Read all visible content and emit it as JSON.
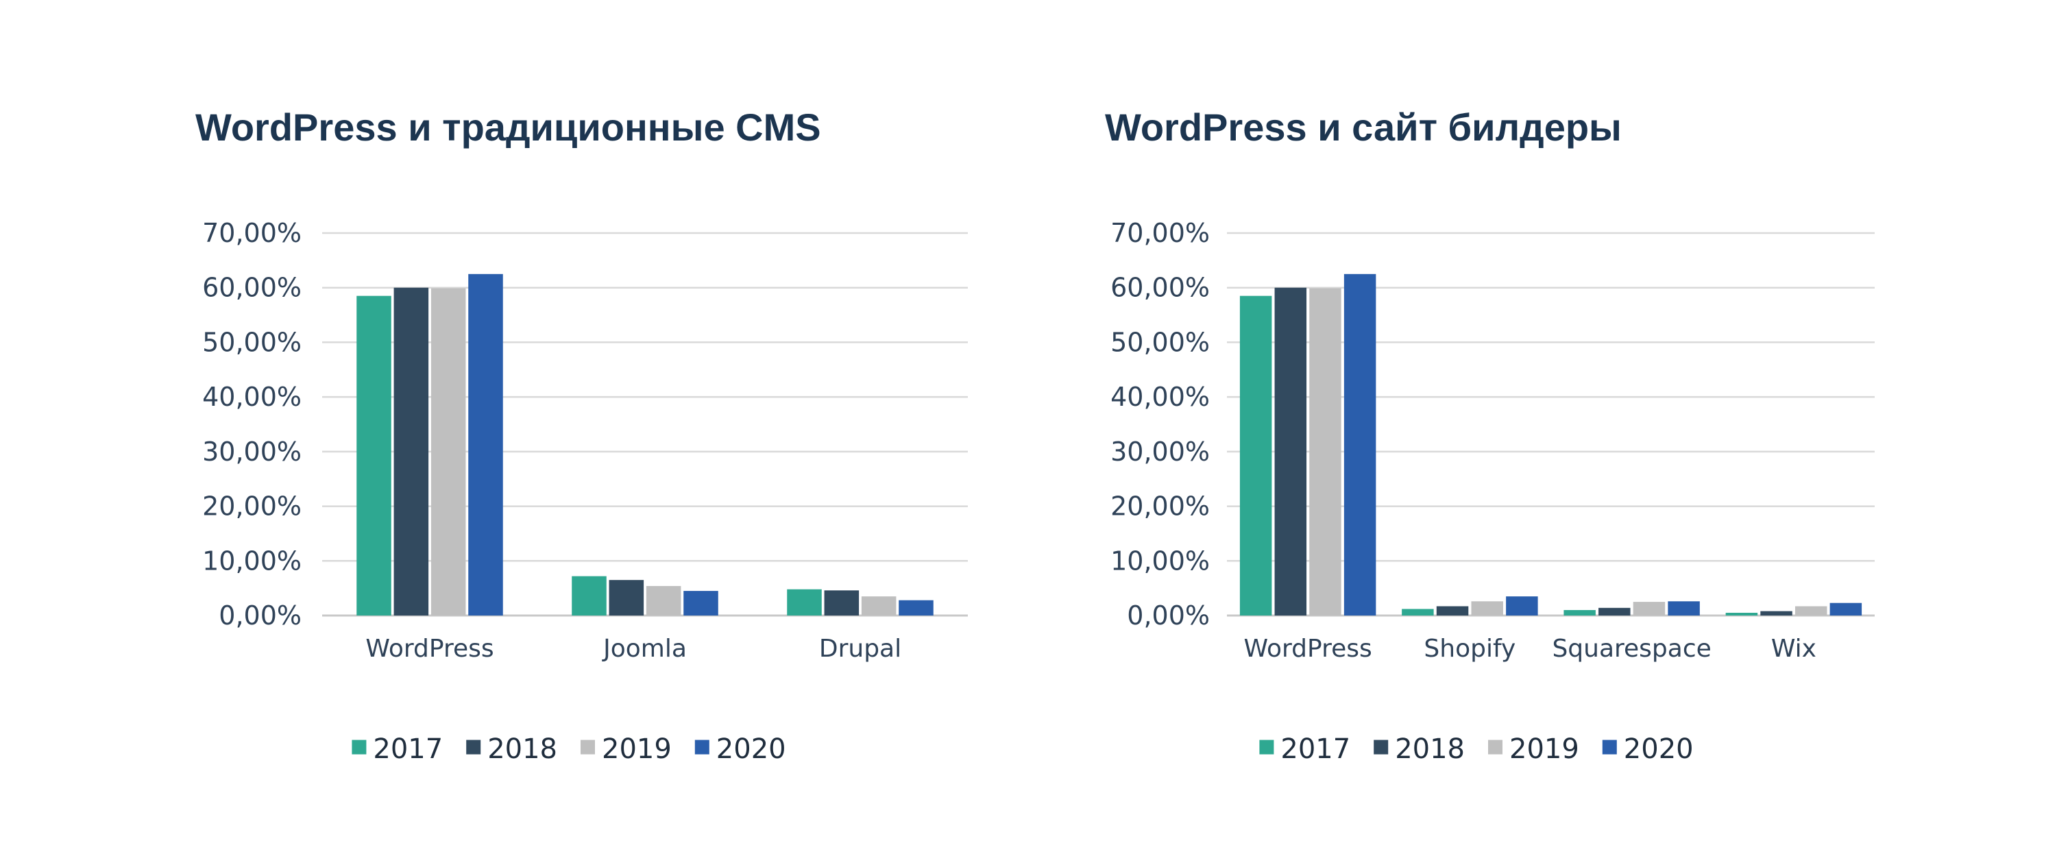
{
  "chart_data": [
    {
      "type": "bar",
      "title": "WordPress и традиционные CMS",
      "categories": [
        "WordPress",
        "Joomla",
        "Drupal"
      ],
      "series": [
        {
          "name": "2017",
          "color": "#2ea891",
          "values": [
            58.5,
            7.2,
            4.8
          ]
        },
        {
          "name": "2018",
          "color": "#324a5f",
          "values": [
            60.0,
            6.5,
            4.6
          ]
        },
        {
          "name": "2019",
          "color": "#bfbfbf",
          "values": [
            59.9,
            5.4,
            3.5
          ]
        },
        {
          "name": "2020",
          "color": "#2a5eac",
          "values": [
            62.5,
            4.5,
            2.8
          ]
        }
      ],
      "yticks": [
        "0,00%",
        "10,00%",
        "20,00%",
        "30,00%",
        "40,00%",
        "50,00%",
        "60,00%",
        "70,00%"
      ],
      "ylim": [
        0,
        70
      ],
      "xlabel": "",
      "ylabel": "",
      "grid": true,
      "legend_position": "bottom"
    },
    {
      "type": "bar",
      "title": "WordPress и сайт билдеры",
      "categories": [
        "WordPress",
        "Shopify",
        "Squarespace",
        "Wix"
      ],
      "series": [
        {
          "name": "2017",
          "color": "#2ea891",
          "values": [
            58.5,
            1.2,
            1.0,
            0.5
          ]
        },
        {
          "name": "2018",
          "color": "#324a5f",
          "values": [
            60.0,
            1.7,
            1.4,
            0.8
          ]
        },
        {
          "name": "2019",
          "color": "#bfbfbf",
          "values": [
            59.9,
            2.6,
            2.5,
            1.7
          ]
        },
        {
          "name": "2020",
          "color": "#2a5eac",
          "values": [
            62.5,
            3.5,
            2.6,
            2.3
          ]
        }
      ],
      "yticks": [
        "0,00%",
        "10,00%",
        "20,00%",
        "30,00%",
        "40,00%",
        "50,00%",
        "60,00%",
        "70,00%"
      ],
      "ylim": [
        0,
        70
      ],
      "xlabel": "",
      "ylabel": "",
      "grid": true,
      "legend_position": "bottom"
    }
  ]
}
